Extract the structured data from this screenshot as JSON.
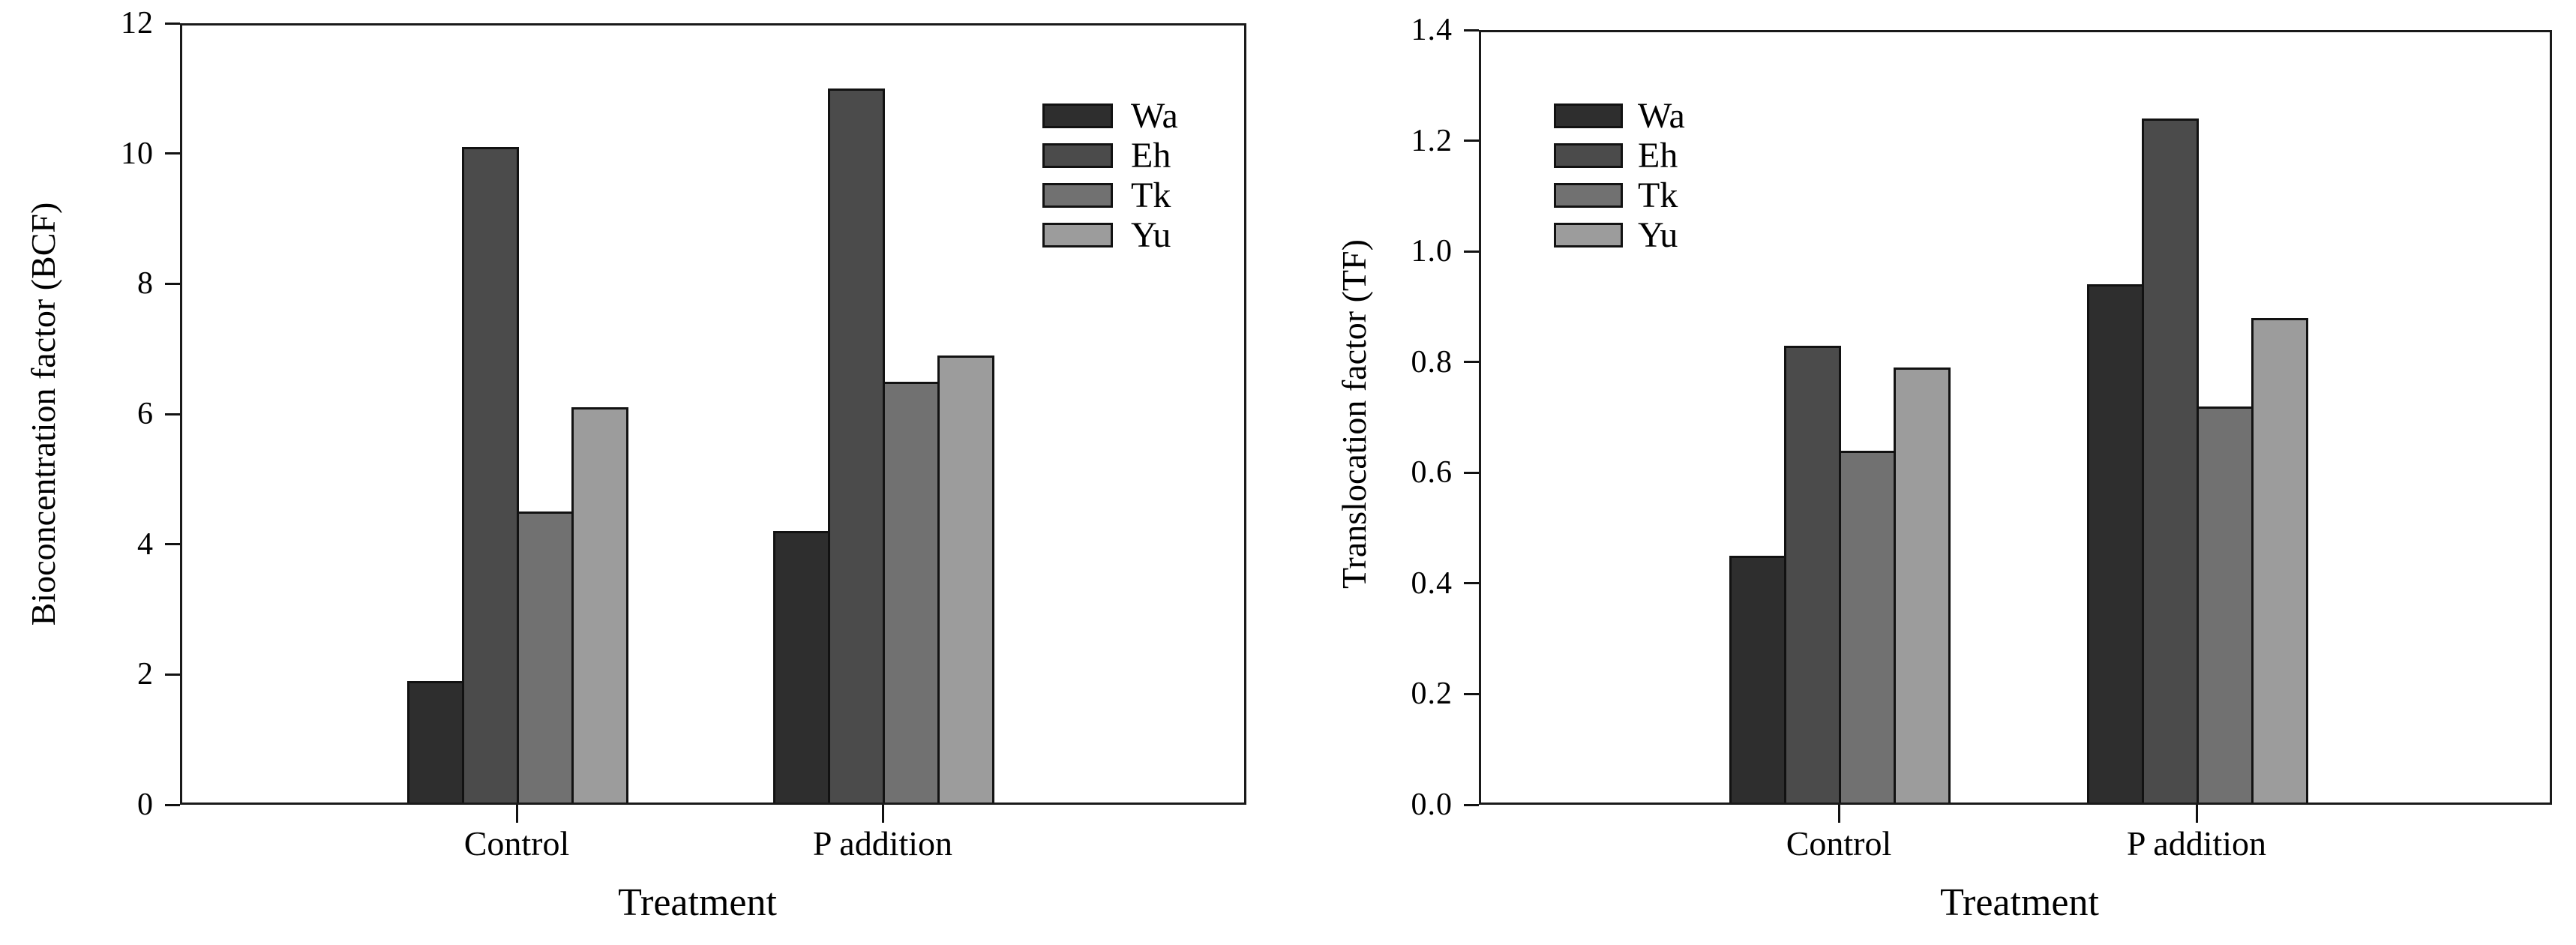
{
  "figure": {
    "background": "#ffffff",
    "text_color": "#000000",
    "frame_color": "#1a1a1a"
  },
  "chart_data": [
    {
      "type": "bar",
      "title": "",
      "ylabel": "Bioconcentration factor (BCF)",
      "xlabel": "Treatment",
      "categories": [
        "Control",
        "P addition"
      ],
      "series": [
        {
          "name": "Wa",
          "color": "#2e2e2e",
          "values": [
            1.9,
            4.2
          ]
        },
        {
          "name": "Eh",
          "color": "#4b4b4b",
          "values": [
            10.1,
            11.0
          ]
        },
        {
          "name": "Tk",
          "color": "#717171",
          "values": [
            4.5,
            6.5
          ]
        },
        {
          "name": "Yu",
          "color": "#9c9c9c",
          "values": [
            6.1,
            6.9
          ]
        }
      ],
      "ylim": [
        0,
        12
      ],
      "ytick_step": 2,
      "ytick_labels": [
        "0",
        "2",
        "4",
        "6",
        "8",
        "10",
        "12"
      ],
      "legend_entries": [
        "Wa",
        "Eh",
        "Tk",
        "Yu"
      ],
      "legend_position": "top-right-inside",
      "grid": false
    },
    {
      "type": "bar",
      "title": "",
      "ylabel": "Translocation factor (TF)",
      "xlabel": "Treatment",
      "categories": [
        "Control",
        "P addition"
      ],
      "series": [
        {
          "name": "Wa",
          "color": "#2e2e2e",
          "values": [
            0.45,
            0.94
          ]
        },
        {
          "name": "Eh",
          "color": "#4b4b4b",
          "values": [
            0.83,
            1.24
          ]
        },
        {
          "name": "Tk",
          "color": "#717171",
          "values": [
            0.64,
            0.72
          ]
        },
        {
          "name": "Yu",
          "color": "#9c9c9c",
          "values": [
            0.79,
            0.88
          ]
        }
      ],
      "ylim": [
        0,
        1.4
      ],
      "ytick_step": 0.2,
      "ytick_labels": [
        "0.0",
        "0.2",
        "0.4",
        "0.6",
        "0.8",
        "1.0",
        "1.2",
        "1.4"
      ],
      "legend_entries": [
        "Wa",
        "Eh",
        "Tk",
        "Yu"
      ],
      "legend_position": "top-left-inside",
      "grid": false
    }
  ]
}
